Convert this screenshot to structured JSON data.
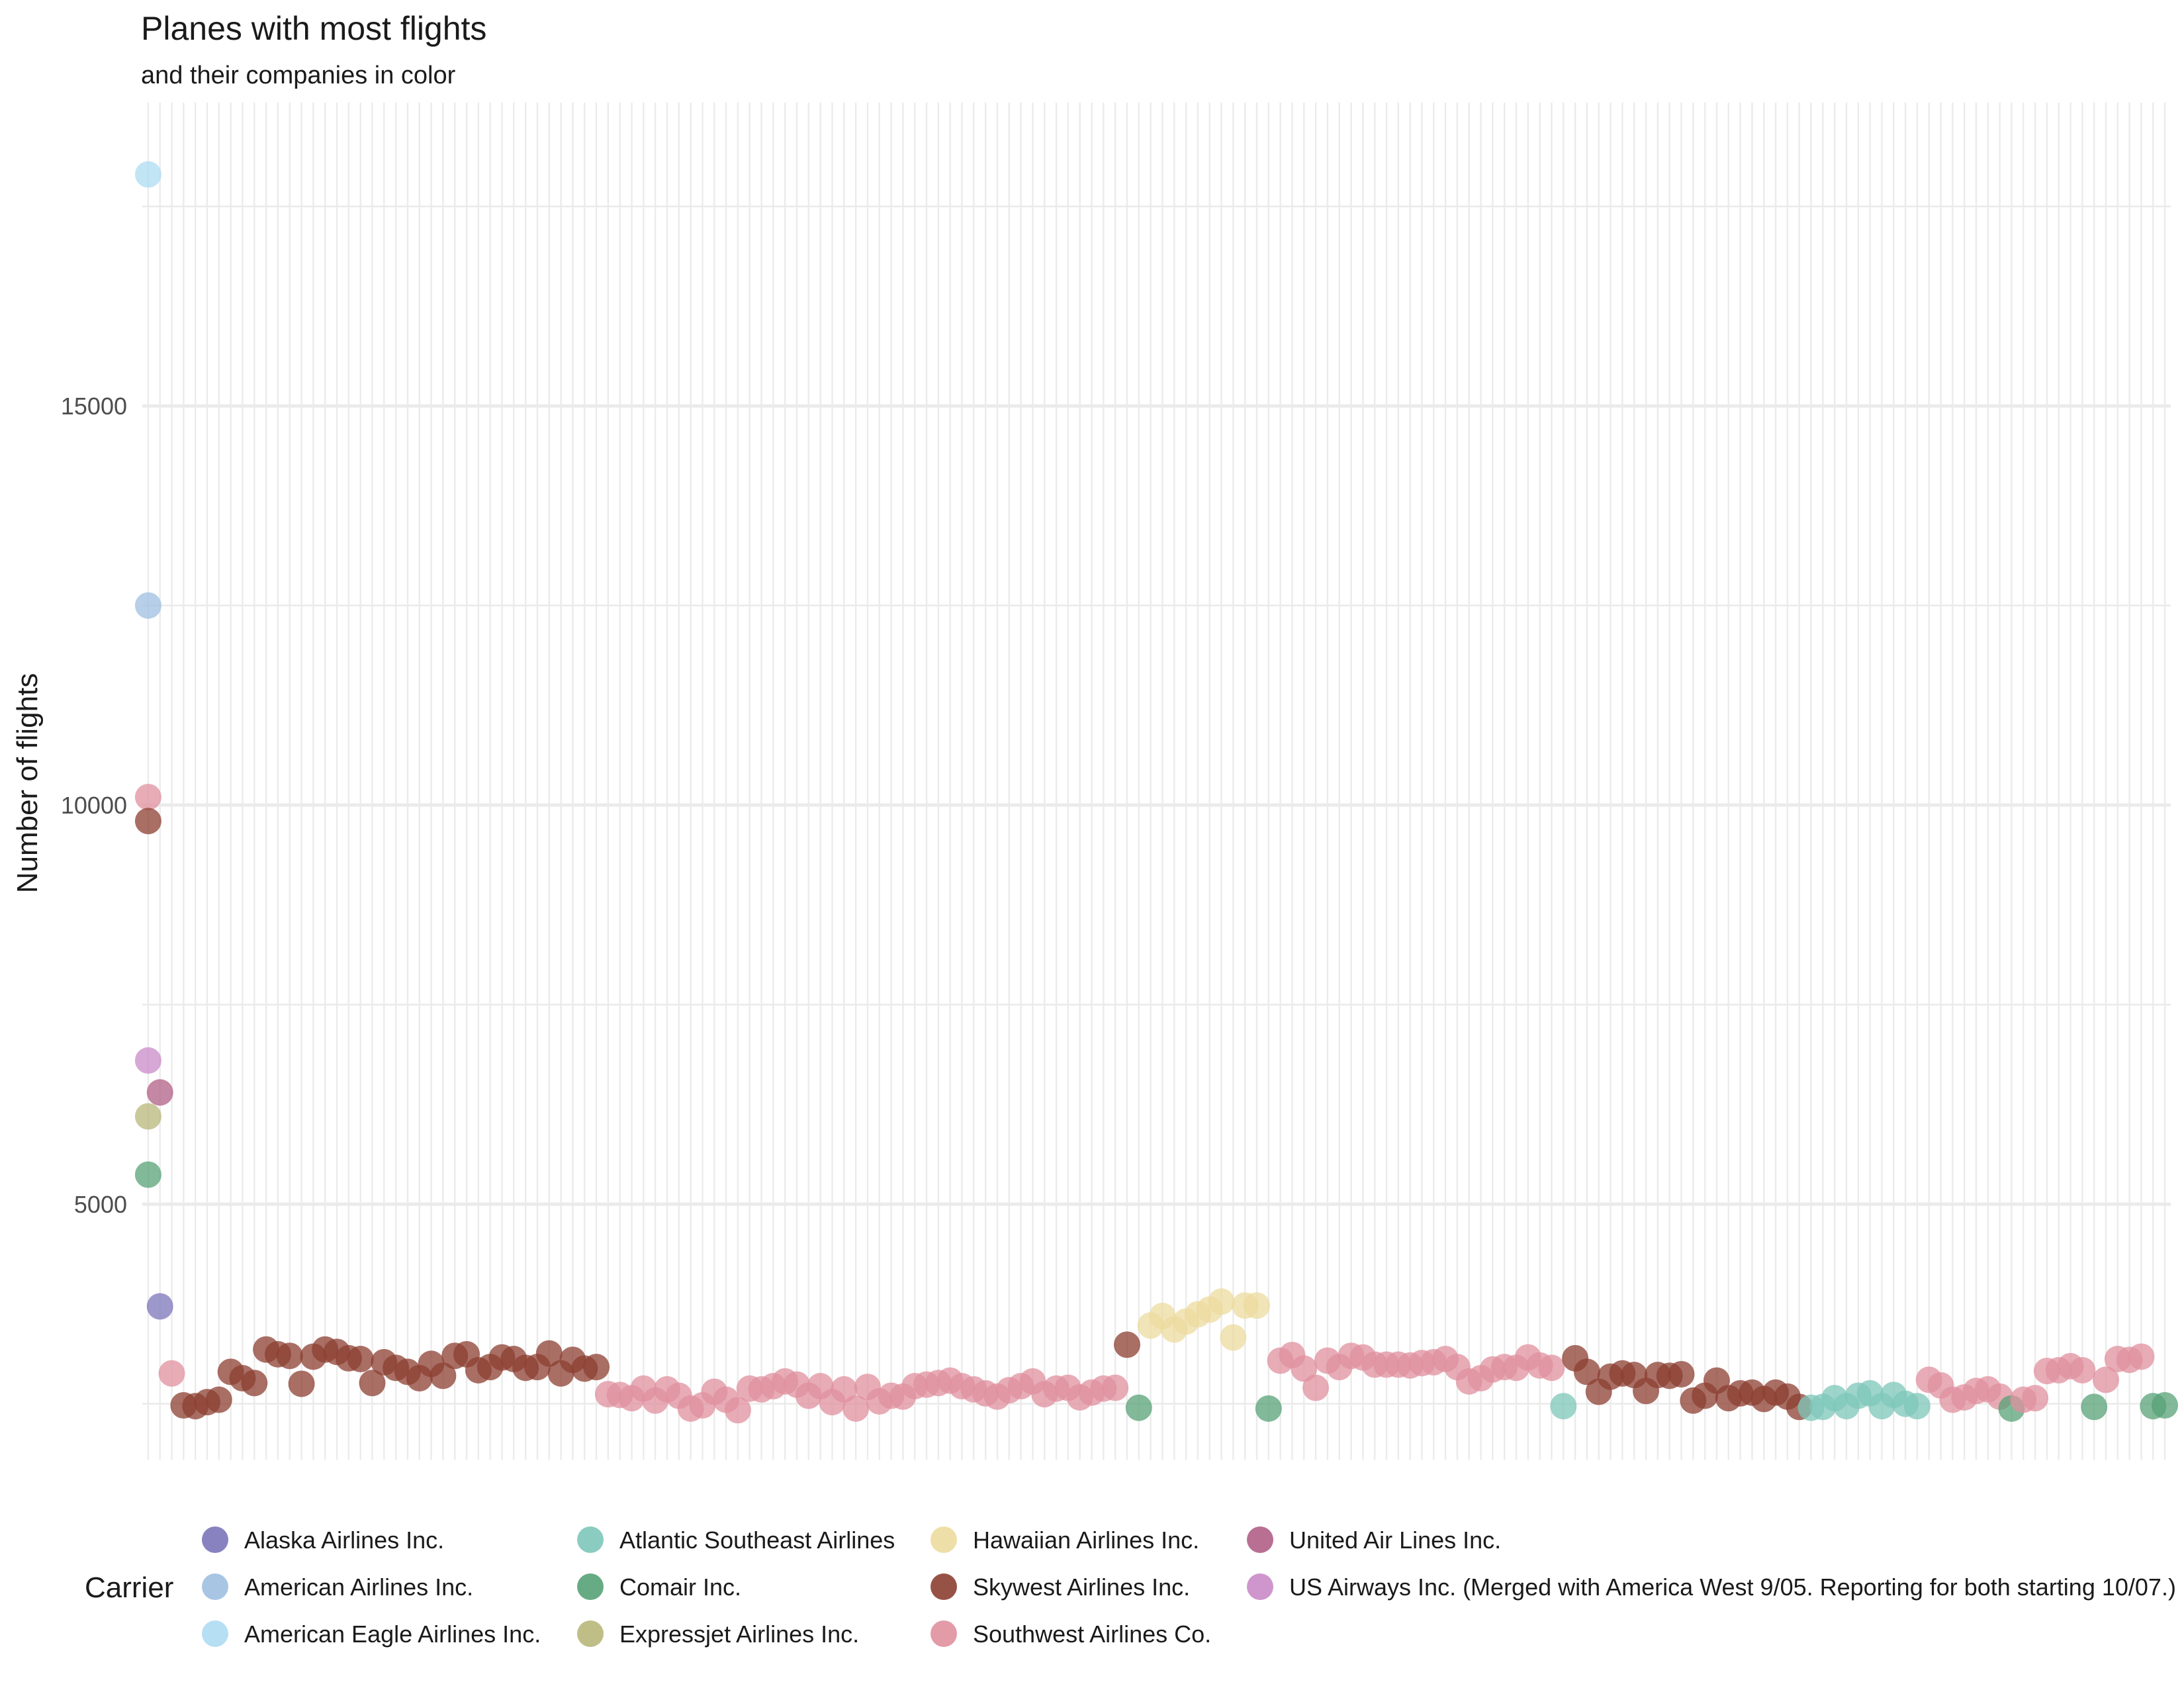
{
  "chart_data": {
    "type": "scatter",
    "title": "Planes with most flights",
    "subtitle": "and their companies in color",
    "xlabel": "",
    "ylabel": "Number of flights",
    "y_ticks": [
      5000,
      10000,
      15000
    ],
    "ylim": [
      1800,
      18800
    ],
    "grid": true,
    "legend_position": "bottom",
    "legend_title": "Carrier",
    "carriers": [
      {
        "name": "Alaska Airlines Inc.",
        "color": "#7b75b9"
      },
      {
        "name": "American Airlines Inc.",
        "color": "#9fbfe0"
      },
      {
        "name": "American Eagle Airlines Inc.",
        "color": "#aedcf3"
      },
      {
        "name": "Atlantic Southeast Airlines",
        "color": "#7ec7b9"
      },
      {
        "name": "Comair Inc.",
        "color": "#57a277"
      },
      {
        "name": "Expressjet Airlines Inc.",
        "color": "#b8b77a"
      },
      {
        "name": "Hawaiian Airlines Inc.",
        "color": "#ecdb9e"
      },
      {
        "name": "Skywest Airlines Inc.",
        "color": "#8c3f32"
      },
      {
        "name": "Southwest Airlines Co.",
        "color": "#e0909f"
      },
      {
        "name": "United Air Lines Inc.",
        "color": "#b05f86"
      },
      {
        "name": "US Airways Inc. (Merged with America West 9/05. Reporting for both starting 10/07.)",
        "color": "#c98bc8"
      }
    ],
    "points": [
      {
        "x": 1,
        "y": 17900,
        "carrier": 2
      },
      {
        "x": 1,
        "y": 12500,
        "carrier": 1
      },
      {
        "x": 1,
        "y": 10100,
        "carrier": 8
      },
      {
        "x": 1,
        "y": 9800,
        "carrier": 7
      },
      {
        "x": 1,
        "y": 6800,
        "carrier": 10
      },
      {
        "x": 1,
        "y": 6100,
        "carrier": 5
      },
      {
        "x": 1,
        "y": 5370,
        "carrier": 4
      },
      {
        "x": 2,
        "y": 6400,
        "carrier": 9
      },
      {
        "x": 2,
        "y": 3720,
        "carrier": 0
      },
      {
        "x": 3,
        "y": 2880,
        "carrier": 8
      },
      {
        "x": 4,
        "y": 2480,
        "carrier": 7
      },
      {
        "x": 5,
        "y": 2470,
        "carrier": 7
      },
      {
        "x": 6,
        "y": 2520,
        "carrier": 7
      },
      {
        "x": 7,
        "y": 2550,
        "carrier": 7
      },
      {
        "x": 8,
        "y": 2900,
        "carrier": 7
      },
      {
        "x": 9,
        "y": 2820,
        "carrier": 7
      },
      {
        "x": 10,
        "y": 2760,
        "carrier": 7
      },
      {
        "x": 11,
        "y": 3180,
        "carrier": 7
      },
      {
        "x": 12,
        "y": 3120,
        "carrier": 7
      },
      {
        "x": 13,
        "y": 3100,
        "carrier": 7
      },
      {
        "x": 14,
        "y": 2750,
        "carrier": 7
      },
      {
        "x": 15,
        "y": 3090,
        "carrier": 7
      },
      {
        "x": 16,
        "y": 3180,
        "carrier": 7
      },
      {
        "x": 17,
        "y": 3150,
        "carrier": 7
      },
      {
        "x": 18,
        "y": 3070,
        "carrier": 7
      },
      {
        "x": 19,
        "y": 3060,
        "carrier": 7
      },
      {
        "x": 20,
        "y": 2760,
        "carrier": 7
      },
      {
        "x": 21,
        "y": 3020,
        "carrier": 7
      },
      {
        "x": 22,
        "y": 2950,
        "carrier": 7
      },
      {
        "x": 23,
        "y": 2900,
        "carrier": 7
      },
      {
        "x": 24,
        "y": 2820,
        "carrier": 7
      },
      {
        "x": 25,
        "y": 3000,
        "carrier": 7
      },
      {
        "x": 26,
        "y": 2850,
        "carrier": 7
      },
      {
        "x": 27,
        "y": 3100,
        "carrier": 7
      },
      {
        "x": 28,
        "y": 3120,
        "carrier": 7
      },
      {
        "x": 29,
        "y": 2920,
        "carrier": 7
      },
      {
        "x": 30,
        "y": 2960,
        "carrier": 7
      },
      {
        "x": 31,
        "y": 3080,
        "carrier": 7
      },
      {
        "x": 32,
        "y": 3060,
        "carrier": 7
      },
      {
        "x": 33,
        "y": 2950,
        "carrier": 7
      },
      {
        "x": 34,
        "y": 2960,
        "carrier": 7
      },
      {
        "x": 35,
        "y": 3130,
        "carrier": 7
      },
      {
        "x": 36,
        "y": 2880,
        "carrier": 7
      },
      {
        "x": 37,
        "y": 3050,
        "carrier": 7
      },
      {
        "x": 38,
        "y": 2940,
        "carrier": 7
      },
      {
        "x": 39,
        "y": 2960,
        "carrier": 7
      },
      {
        "x": 40,
        "y": 2620,
        "carrier": 8
      },
      {
        "x": 41,
        "y": 2610,
        "carrier": 8
      },
      {
        "x": 42,
        "y": 2570,
        "carrier": 8
      },
      {
        "x": 43,
        "y": 2690,
        "carrier": 8
      },
      {
        "x": 44,
        "y": 2540,
        "carrier": 8
      },
      {
        "x": 45,
        "y": 2680,
        "carrier": 8
      },
      {
        "x": 46,
        "y": 2600,
        "carrier": 8
      },
      {
        "x": 47,
        "y": 2440,
        "carrier": 8
      },
      {
        "x": 48,
        "y": 2480,
        "carrier": 8
      },
      {
        "x": 49,
        "y": 2650,
        "carrier": 8
      },
      {
        "x": 50,
        "y": 2550,
        "carrier": 8
      },
      {
        "x": 51,
        "y": 2420,
        "carrier": 8
      },
      {
        "x": 52,
        "y": 2690,
        "carrier": 8
      },
      {
        "x": 53,
        "y": 2680,
        "carrier": 8
      },
      {
        "x": 54,
        "y": 2720,
        "carrier": 8
      },
      {
        "x": 55,
        "y": 2780,
        "carrier": 8
      },
      {
        "x": 56,
        "y": 2740,
        "carrier": 8
      },
      {
        "x": 57,
        "y": 2600,
        "carrier": 8
      },
      {
        "x": 58,
        "y": 2720,
        "carrier": 8
      },
      {
        "x": 59,
        "y": 2520,
        "carrier": 8
      },
      {
        "x": 60,
        "y": 2680,
        "carrier": 8
      },
      {
        "x": 61,
        "y": 2440,
        "carrier": 8
      },
      {
        "x": 62,
        "y": 2710,
        "carrier": 8
      },
      {
        "x": 63,
        "y": 2530,
        "carrier": 8
      },
      {
        "x": 64,
        "y": 2600,
        "carrier": 8
      },
      {
        "x": 65,
        "y": 2590,
        "carrier": 8
      },
      {
        "x": 66,
        "y": 2720,
        "carrier": 8
      },
      {
        "x": 67,
        "y": 2740,
        "carrier": 8
      },
      {
        "x": 68,
        "y": 2760,
        "carrier": 8
      },
      {
        "x": 69,
        "y": 2790,
        "carrier": 8
      },
      {
        "x": 70,
        "y": 2720,
        "carrier": 8
      },
      {
        "x": 71,
        "y": 2680,
        "carrier": 8
      },
      {
        "x": 72,
        "y": 2630,
        "carrier": 8
      },
      {
        "x": 73,
        "y": 2590,
        "carrier": 8
      },
      {
        "x": 74,
        "y": 2670,
        "carrier": 8
      },
      {
        "x": 75,
        "y": 2720,
        "carrier": 8
      },
      {
        "x": 76,
        "y": 2780,
        "carrier": 8
      },
      {
        "x": 77,
        "y": 2620,
        "carrier": 8
      },
      {
        "x": 78,
        "y": 2690,
        "carrier": 8
      },
      {
        "x": 79,
        "y": 2700,
        "carrier": 8
      },
      {
        "x": 80,
        "y": 2580,
        "carrier": 8
      },
      {
        "x": 81,
        "y": 2640,
        "carrier": 8
      },
      {
        "x": 82,
        "y": 2690,
        "carrier": 8
      },
      {
        "x": 83,
        "y": 2700,
        "carrier": 8
      },
      {
        "x": 84,
        "y": 3240,
        "carrier": 7
      },
      {
        "x": 85,
        "y": 2450,
        "carrier": 4
      },
      {
        "x": 86,
        "y": 3480,
        "carrier": 6
      },
      {
        "x": 87,
        "y": 3600,
        "carrier": 6
      },
      {
        "x": 88,
        "y": 3430,
        "carrier": 6
      },
      {
        "x": 89,
        "y": 3530,
        "carrier": 6
      },
      {
        "x": 90,
        "y": 3620,
        "carrier": 6
      },
      {
        "x": 91,
        "y": 3680,
        "carrier": 6
      },
      {
        "x": 92,
        "y": 3780,
        "carrier": 6
      },
      {
        "x": 93,
        "y": 3330,
        "carrier": 6
      },
      {
        "x": 94,
        "y": 3730,
        "carrier": 6
      },
      {
        "x": 95,
        "y": 3730,
        "carrier": 6
      },
      {
        "x": 96,
        "y": 2440,
        "carrier": 4
      },
      {
        "x": 97,
        "y": 3040,
        "carrier": 8
      },
      {
        "x": 98,
        "y": 3110,
        "carrier": 8
      },
      {
        "x": 99,
        "y": 2940,
        "carrier": 8
      },
      {
        "x": 100,
        "y": 2700,
        "carrier": 8
      },
      {
        "x": 101,
        "y": 3040,
        "carrier": 8
      },
      {
        "x": 102,
        "y": 2960,
        "carrier": 8
      },
      {
        "x": 103,
        "y": 3100,
        "carrier": 8
      },
      {
        "x": 104,
        "y": 3080,
        "carrier": 8
      },
      {
        "x": 105,
        "y": 2990,
        "carrier": 8
      },
      {
        "x": 106,
        "y": 2990,
        "carrier": 8
      },
      {
        "x": 107,
        "y": 2990,
        "carrier": 8
      },
      {
        "x": 108,
        "y": 2980,
        "carrier": 8
      },
      {
        "x": 109,
        "y": 3010,
        "carrier": 8
      },
      {
        "x": 110,
        "y": 3020,
        "carrier": 8
      },
      {
        "x": 111,
        "y": 3060,
        "carrier": 8
      },
      {
        "x": 112,
        "y": 2960,
        "carrier": 8
      },
      {
        "x": 113,
        "y": 2780,
        "carrier": 8
      },
      {
        "x": 114,
        "y": 2820,
        "carrier": 8
      },
      {
        "x": 115,
        "y": 2930,
        "carrier": 8
      },
      {
        "x": 116,
        "y": 2960,
        "carrier": 8
      },
      {
        "x": 117,
        "y": 2950,
        "carrier": 8
      },
      {
        "x": 118,
        "y": 3080,
        "carrier": 8
      },
      {
        "x": 119,
        "y": 2980,
        "carrier": 8
      },
      {
        "x": 120,
        "y": 2950,
        "carrier": 8
      },
      {
        "x": 121,
        "y": 2470,
        "carrier": 3
      },
      {
        "x": 122,
        "y": 3070,
        "carrier": 7
      },
      {
        "x": 123,
        "y": 2900,
        "carrier": 7
      },
      {
        "x": 124,
        "y": 2650,
        "carrier": 7
      },
      {
        "x": 125,
        "y": 2840,
        "carrier": 7
      },
      {
        "x": 126,
        "y": 2880,
        "carrier": 7
      },
      {
        "x": 127,
        "y": 2860,
        "carrier": 7
      },
      {
        "x": 128,
        "y": 2660,
        "carrier": 7
      },
      {
        "x": 129,
        "y": 2860,
        "carrier": 7
      },
      {
        "x": 130,
        "y": 2850,
        "carrier": 7
      },
      {
        "x": 131,
        "y": 2870,
        "carrier": 7
      },
      {
        "x": 132,
        "y": 2540,
        "carrier": 7
      },
      {
        "x": 133,
        "y": 2600,
        "carrier": 7
      },
      {
        "x": 134,
        "y": 2790,
        "carrier": 7
      },
      {
        "x": 135,
        "y": 2570,
        "carrier": 7
      },
      {
        "x": 136,
        "y": 2630,
        "carrier": 7
      },
      {
        "x": 137,
        "y": 2640,
        "carrier": 7
      },
      {
        "x": 138,
        "y": 2560,
        "carrier": 7
      },
      {
        "x": 139,
        "y": 2640,
        "carrier": 7
      },
      {
        "x": 140,
        "y": 2590,
        "carrier": 7
      },
      {
        "x": 141,
        "y": 2460,
        "carrier": 7
      },
      {
        "x": 142,
        "y": 2450,
        "carrier": 3
      },
      {
        "x": 143,
        "y": 2460,
        "carrier": 3
      },
      {
        "x": 144,
        "y": 2570,
        "carrier": 3
      },
      {
        "x": 145,
        "y": 2470,
        "carrier": 3
      },
      {
        "x": 146,
        "y": 2600,
        "carrier": 3
      },
      {
        "x": 147,
        "y": 2630,
        "carrier": 3
      },
      {
        "x": 148,
        "y": 2470,
        "carrier": 3
      },
      {
        "x": 149,
        "y": 2610,
        "carrier": 3
      },
      {
        "x": 150,
        "y": 2500,
        "carrier": 3
      },
      {
        "x": 151,
        "y": 2470,
        "carrier": 3
      },
      {
        "x": 152,
        "y": 2800,
        "carrier": 8
      },
      {
        "x": 153,
        "y": 2730,
        "carrier": 8
      },
      {
        "x": 154,
        "y": 2550,
        "carrier": 8
      },
      {
        "x": 155,
        "y": 2580,
        "carrier": 8
      },
      {
        "x": 156,
        "y": 2660,
        "carrier": 8
      },
      {
        "x": 157,
        "y": 2680,
        "carrier": 8
      },
      {
        "x": 158,
        "y": 2590,
        "carrier": 8
      },
      {
        "x": 159,
        "y": 2440,
        "carrier": 4
      },
      {
        "x": 160,
        "y": 2550,
        "carrier": 8
      },
      {
        "x": 161,
        "y": 2570,
        "carrier": 8
      },
      {
        "x": 162,
        "y": 2910,
        "carrier": 8
      },
      {
        "x": 163,
        "y": 2920,
        "carrier": 8
      },
      {
        "x": 164,
        "y": 2970,
        "carrier": 8
      },
      {
        "x": 165,
        "y": 2920,
        "carrier": 8
      },
      {
        "x": 166,
        "y": 2460,
        "carrier": 4
      },
      {
        "x": 167,
        "y": 2800,
        "carrier": 8
      },
      {
        "x": 168,
        "y": 3060,
        "carrier": 8
      },
      {
        "x": 169,
        "y": 3050,
        "carrier": 8
      },
      {
        "x": 170,
        "y": 3090,
        "carrier": 8
      },
      {
        "x": 171,
        "y": 2470,
        "carrier": 4
      },
      {
        "x": 172,
        "y": 2480,
        "carrier": 4
      }
    ]
  }
}
